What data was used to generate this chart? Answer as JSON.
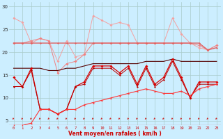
{
  "xlabel": "Vent moyen/en rafales ( km/h )",
  "background_color": "#cceeff",
  "grid_color": "#aacccc",
  "ylim": [
    4,
    31
  ],
  "yticks": [
    5,
    10,
    15,
    20,
    25,
    30
  ],
  "hours": [
    0,
    1,
    2,
    3,
    4,
    5,
    6,
    7,
    8,
    9,
    10,
    11,
    12,
    13,
    14,
    15,
    16,
    17,
    18,
    19,
    20,
    21,
    22,
    23
  ],
  "line_gust_light": [
    27.5,
    26.5,
    22.0,
    23.0,
    22.5,
    18.0,
    22.5,
    19.0,
    19.5,
    28.0,
    27.0,
    26.0,
    26.5,
    26.0,
    22.0,
    22.0,
    22.0,
    22.0,
    27.5,
    24.0,
    22.0,
    21.0,
    20.5,
    21.5
  ],
  "line_gust_med": [
    22.0,
    22.0,
    22.5,
    23.0,
    22.5,
    15.5,
    17.5,
    18.0,
    19.5,
    22.0,
    22.0,
    22.0,
    22.0,
    22.0,
    22.0,
    22.0,
    22.0,
    22.0,
    22.0,
    22.0,
    22.0,
    21.5,
    20.5,
    21.5
  ],
  "line_flat_pink": [
    22.0,
    22.0,
    22.0,
    22.0,
    22.0,
    22.0,
    22.0,
    22.0,
    22.0,
    22.0,
    22.0,
    22.0,
    22.0,
    22.0,
    22.0,
    22.0,
    22.0,
    22.0,
    22.0,
    22.0,
    22.0,
    22.0,
    20.5,
    21.0
  ],
  "line_wind_upper": [
    16.5,
    16.5,
    16.5,
    16.5,
    16.0,
    16.0,
    16.5,
    16.5,
    17.0,
    17.5,
    17.5,
    17.5,
    17.5,
    17.5,
    17.5,
    18.0,
    18.0,
    18.0,
    18.5,
    18.0,
    18.0,
    18.0,
    18.0,
    18.0
  ],
  "line_wind_main": [
    14.5,
    12.5,
    16.5,
    7.5,
    7.5,
    6.5,
    7.5,
    12.5,
    13.5,
    17.0,
    17.0,
    17.0,
    15.5,
    17.0,
    13.0,
    17.0,
    13.0,
    14.5,
    18.5,
    14.5,
    10.0,
    13.5,
    13.5,
    13.5
  ],
  "line_wind_lower": [
    12.5,
    12.5,
    16.0,
    7.5,
    7.5,
    6.5,
    7.5,
    12.5,
    13.0,
    16.5,
    16.5,
    16.5,
    15.0,
    16.5,
    12.5,
    16.5,
    12.5,
    14.0,
    18.0,
    14.0,
    10.0,
    13.0,
    13.0,
    13.0
  ],
  "line_mean_trend": [
    4.0,
    4.0,
    4.5,
    7.5,
    7.5,
    6.5,
    7.5,
    7.5,
    8.5,
    9.0,
    9.5,
    10.0,
    10.5,
    11.0,
    11.5,
    12.0,
    11.5,
    11.0,
    11.0,
    11.5,
    10.5,
    12.0,
    12.5,
    13.0
  ],
  "color_light_pink": "#f4a0a0",
  "color_med_pink": "#f08080",
  "color_flat_pink": "#e87070",
  "color_dark_red": "#cc0000",
  "color_bright_red": "#ff2222",
  "color_deep_red": "#880000"
}
